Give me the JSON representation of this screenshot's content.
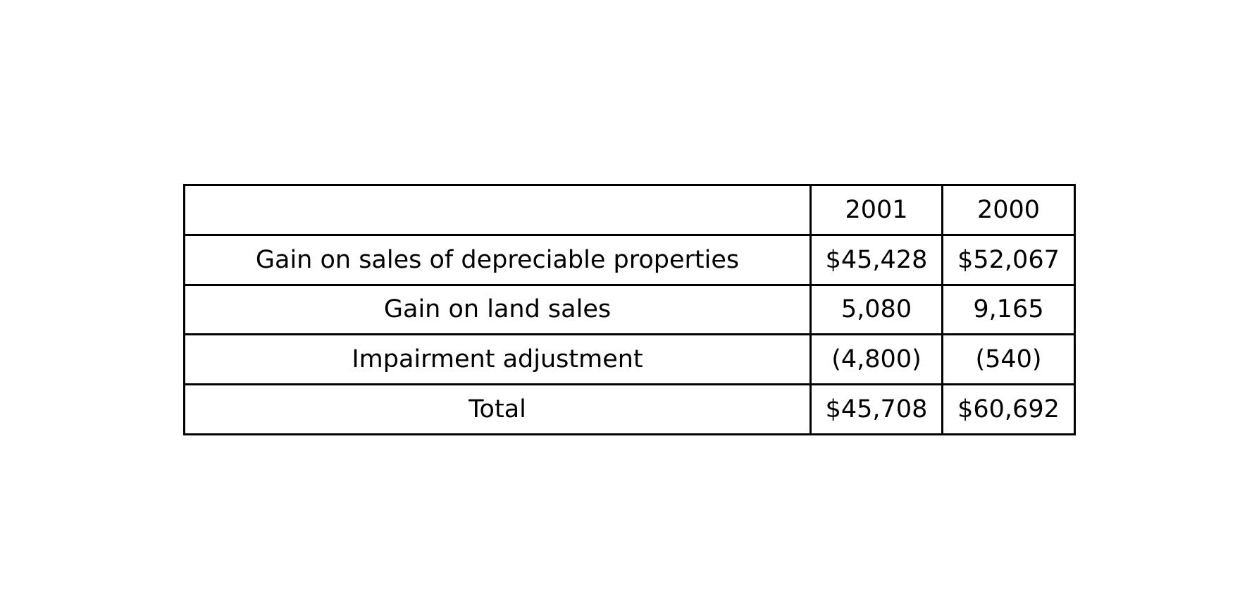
{
  "chart_data": {
    "type": "table",
    "columns": [
      "",
      "2001",
      "2000"
    ],
    "rows": [
      {
        "label": "Gain on sales of depreciable properties",
        "values": [
          "$45,428",
          "$52,067"
        ]
      },
      {
        "label": "Gain on land sales",
        "values": [
          "5,080",
          "9,165"
        ]
      },
      {
        "label": "Impairment adjustment",
        "values": [
          "(4,800)",
          "(540)"
        ]
      },
      {
        "label": "Total",
        "values": [
          "$45,708",
          "$60,692"
        ]
      }
    ]
  }
}
